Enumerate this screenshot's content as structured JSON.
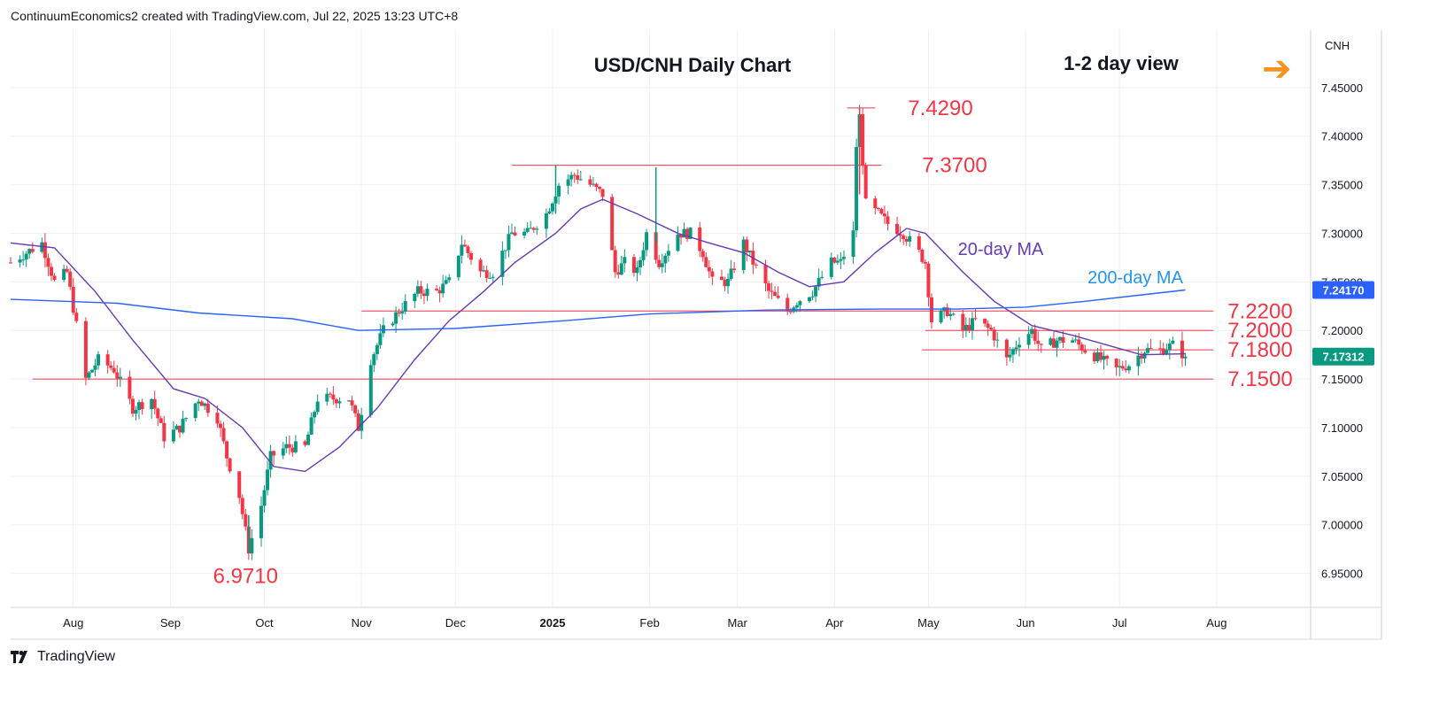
{
  "header": "ContinuumEconomics2 created with TradingView.com, Jul 22, 2025 13:23 UTC+8",
  "footer": {
    "brand": "TradingView"
  },
  "colors": {
    "up": "#089981",
    "down": "#f23645",
    "level": "#f23645",
    "ma20": "#673ab7",
    "ma200": "#2962ff",
    "accent": "#2196f3",
    "arrow": "#f7931e"
  },
  "icons": {
    "view_arrow": "arrow-right-icon",
    "logo": "tradingview-logo-icon"
  },
  "chart_data": {
    "type": "candlestick",
    "title": "USD/CNH Daily Chart",
    "subtitle": "1-2 day view",
    "symbol": "CNH",
    "x_ticks": [
      "Aug",
      "Sep",
      "Oct",
      "Nov",
      "Dec",
      "2025",
      "Feb",
      "Mar",
      "Apr",
      "May",
      "Jun",
      "Jul",
      "Aug"
    ],
    "y_ticks": [
      "7.45000",
      "7.40000",
      "7.35000",
      "7.30000",
      "7.25000",
      "7.20000",
      "7.15000",
      "7.10000",
      "7.05000",
      "7.00000",
      "6.95000"
    ],
    "ylim": [
      6.915,
      7.51
    ],
    "xlim": [
      "2024-07-12",
      "2025-08-31"
    ],
    "last_price_label": "7.17312",
    "ma200_label_value": "7.24170",
    "levels": [
      {
        "label": "7.4290",
        "value": 7.429,
        "from": "2025-04-05",
        "to": "2025-04-14"
      },
      {
        "label": "7.3700",
        "value": 7.37,
        "from": "2024-12-19",
        "to": "2025-04-16"
      },
      {
        "label": "7.2200",
        "value": 7.22,
        "from": "2024-11-01",
        "to": "2025-07-31"
      },
      {
        "label": "7.2000",
        "value": 7.2,
        "from": "2025-04-30",
        "to": "2025-07-31"
      },
      {
        "label": "7.1800",
        "value": 7.18,
        "from": "2025-04-29",
        "to": "2025-07-31"
      },
      {
        "label": "7.1500",
        "value": 7.15,
        "from": "2024-07-19",
        "to": "2025-07-31"
      }
    ],
    "annotations": [
      {
        "text": "6.9710",
        "date": "2024-09-25",
        "value": 6.971
      }
    ],
    "series": [
      {
        "name": "20-day MA",
        "style": "line"
      },
      {
        "name": "200-day MA",
        "style": "line"
      }
    ],
    "price_path": [
      [
        "2024-07-12",
        7.27
      ],
      [
        "2024-07-22",
        7.29
      ],
      [
        "2024-07-26",
        7.25
      ],
      [
        "2024-07-30",
        7.26
      ],
      [
        "2024-08-05",
        7.15
      ],
      [
        "2024-08-09",
        7.17
      ],
      [
        "2024-08-14",
        7.16
      ],
      [
        "2024-08-20",
        7.12
      ],
      [
        "2024-08-26",
        7.13
      ],
      [
        "2024-08-30",
        7.09
      ],
      [
        "2024-09-04",
        7.1
      ],
      [
        "2024-09-10",
        7.13
      ],
      [
        "2024-09-16",
        7.11
      ],
      [
        "2024-09-19",
        7.07
      ],
      [
        "2024-09-23",
        7.03
      ],
      [
        "2024-09-26",
        6.975
      ],
      [
        "2024-09-30",
        7.02
      ],
      [
        "2024-10-03",
        7.07
      ],
      [
        "2024-10-08",
        7.08
      ],
      [
        "2024-10-14",
        7.08
      ],
      [
        "2024-10-18",
        7.13
      ],
      [
        "2024-10-23",
        7.13
      ],
      [
        "2024-10-28",
        7.13
      ],
      [
        "2024-10-31",
        7.1
      ],
      [
        "2024-11-04",
        7.17
      ],
      [
        "2024-11-08",
        7.2
      ],
      [
        "2024-11-13",
        7.22
      ],
      [
        "2024-11-19",
        7.24
      ],
      [
        "2024-11-25",
        7.24
      ],
      [
        "2024-11-29",
        7.25
      ],
      [
        "2024-12-03",
        7.29
      ],
      [
        "2024-12-09",
        7.26
      ],
      [
        "2024-12-13",
        7.26
      ],
      [
        "2024-12-19",
        7.3
      ],
      [
        "2024-12-24",
        7.3
      ],
      [
        "2024-12-30",
        7.32
      ],
      [
        "2025-01-03",
        7.35
      ],
      [
        "2025-01-08",
        7.36
      ],
      [
        "2025-01-13",
        7.35
      ],
      [
        "2025-01-17",
        7.34
      ],
      [
        "2025-01-21",
        7.26
      ],
      [
        "2025-01-24",
        7.27
      ],
      [
        "2025-01-28",
        7.26
      ],
      [
        "2025-01-31",
        7.3
      ],
      [
        "2025-02-04",
        7.27
      ],
      [
        "2025-02-10",
        7.3
      ],
      [
        "2025-02-14",
        7.3
      ],
      [
        "2025-02-18",
        7.28
      ],
      [
        "2025-02-21",
        7.25
      ],
      [
        "2025-02-26",
        7.25
      ],
      [
        "2025-03-03",
        7.29
      ],
      [
        "2025-03-06",
        7.27
      ],
      [
        "2025-03-11",
        7.24
      ],
      [
        "2025-03-17",
        7.22
      ],
      [
        "2025-03-20",
        7.23
      ],
      [
        "2025-03-25",
        7.24
      ],
      [
        "2025-03-31",
        7.27
      ],
      [
        "2025-04-03",
        7.27
      ],
      [
        "2025-04-07",
        7.3
      ],
      [
        "2025-04-08",
        7.39
      ],
      [
        "2025-04-09",
        7.42
      ],
      [
        "2025-04-11",
        7.33
      ],
      [
        "2025-04-15",
        7.32
      ],
      [
        "2025-04-18",
        7.31
      ],
      [
        "2025-04-23",
        7.3
      ],
      [
        "2025-04-28",
        7.28
      ],
      [
        "2025-04-30",
        7.27
      ],
      [
        "2025-05-02",
        7.21
      ],
      [
        "2025-05-07",
        7.22
      ],
      [
        "2025-05-12",
        7.2
      ],
      [
        "2025-05-16",
        7.21
      ],
      [
        "2025-05-21",
        7.2
      ],
      [
        "2025-05-26",
        7.17
      ],
      [
        "2025-05-30",
        7.19
      ],
      [
        "2025-06-03",
        7.2
      ],
      [
        "2025-06-06",
        7.18
      ],
      [
        "2025-06-11",
        7.19
      ],
      [
        "2025-06-16",
        7.19
      ],
      [
        "2025-06-20",
        7.18
      ],
      [
        "2025-06-25",
        7.17
      ],
      [
        "2025-06-30",
        7.16
      ],
      [
        "2025-07-04",
        7.165
      ],
      [
        "2025-07-09",
        7.18
      ],
      [
        "2025-07-14",
        7.18
      ],
      [
        "2025-07-18",
        7.185
      ],
      [
        "2025-07-22",
        7.1731
      ]
    ],
    "ma20_path": [
      [
        "2024-07-12",
        7.29
      ],
      [
        "2024-07-26",
        7.285
      ],
      [
        "2024-08-08",
        7.24
      ],
      [
        "2024-08-20",
        7.19
      ],
      [
        "2024-09-02",
        7.14
      ],
      [
        "2024-09-12",
        7.13
      ],
      [
        "2024-09-24",
        7.1
      ],
      [
        "2024-10-04",
        7.06
      ],
      [
        "2024-10-14",
        7.055
      ],
      [
        "2024-10-25",
        7.08
      ],
      [
        "2024-11-06",
        7.12
      ],
      [
        "2024-11-18",
        7.17
      ],
      [
        "2024-11-29",
        7.21
      ],
      [
        "2024-12-10",
        7.24
      ],
      [
        "2024-12-20",
        7.27
      ],
      [
        "2025-01-02",
        7.3
      ],
      [
        "2025-01-10",
        7.325
      ],
      [
        "2025-01-17",
        7.335
      ],
      [
        "2025-01-28",
        7.32
      ],
      [
        "2025-02-10",
        7.3
      ],
      [
        "2025-02-20",
        7.29
      ],
      [
        "2025-03-03",
        7.28
      ],
      [
        "2025-03-14",
        7.26
      ],
      [
        "2025-03-24",
        7.245
      ],
      [
        "2025-04-04",
        7.25
      ],
      [
        "2025-04-14",
        7.28
      ],
      [
        "2025-04-24",
        7.305
      ],
      [
        "2025-04-30",
        7.3
      ],
      [
        "2025-05-12",
        7.26
      ],
      [
        "2025-05-22",
        7.23
      ],
      [
        "2025-06-03",
        7.205
      ],
      [
        "2025-06-16",
        7.195
      ],
      [
        "2025-06-27",
        7.185
      ],
      [
        "2025-07-08",
        7.175
      ],
      [
        "2025-07-22",
        7.176
      ]
    ],
    "ma200_path": [
      [
        "2024-07-12",
        7.232
      ],
      [
        "2024-08-15",
        7.228
      ],
      [
        "2024-09-10",
        7.218
      ],
      [
        "2024-10-10",
        7.212
      ],
      [
        "2024-10-31",
        7.2
      ],
      [
        "2024-12-01",
        7.202
      ],
      [
        "2025-01-05",
        7.21
      ],
      [
        "2025-02-01",
        7.217
      ],
      [
        "2025-03-10",
        7.221
      ],
      [
        "2025-04-15",
        7.222
      ],
      [
        "2025-05-10",
        7.222
      ],
      [
        "2025-06-01",
        7.224
      ],
      [
        "2025-06-20",
        7.23
      ],
      [
        "2025-07-22",
        7.2417
      ]
    ]
  }
}
